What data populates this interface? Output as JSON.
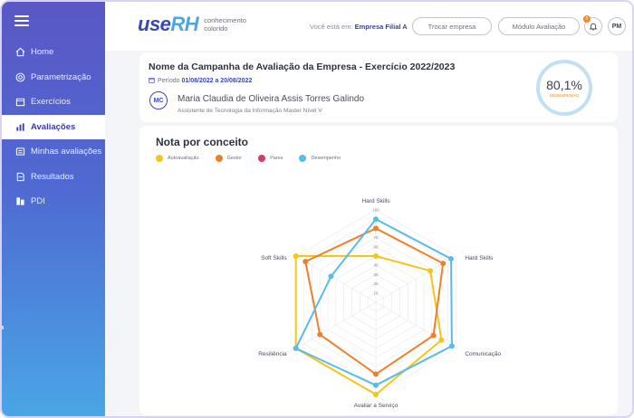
{
  "brand": {
    "logo_use": "use",
    "logo_rh": "RH",
    "tagline": "conhecimento colorido"
  },
  "sidebar": {
    "items": [
      {
        "label": "Home",
        "icon": "home-icon"
      },
      {
        "label": "Parametrização",
        "icon": "target-icon"
      },
      {
        "label": "Exercícios",
        "icon": "calendar-icon"
      },
      {
        "label": "Avaliações",
        "icon": "chart-bars-icon",
        "active": true
      },
      {
        "label": "Minhas avaliações",
        "icon": "people-icon"
      },
      {
        "label": "Resultados",
        "icon": "document-icon"
      },
      {
        "label": "PDI",
        "icon": "grid-chart-icon"
      }
    ]
  },
  "header": {
    "company_prefix": "Você está em:",
    "company_name": "Empresa Filial A",
    "switch_company": "Trocar empresa",
    "module": "Módulo Avaliação",
    "notifications_count": "0",
    "user_initials": "PM"
  },
  "campaign": {
    "title": "Nome da Campanha de Avaliação da Empresa - Exercício 2022/2023",
    "period_label": "Período",
    "period_value": "01/08/2022 a 20/08/2022",
    "person_initials": "MC",
    "person_name": "Maria Claudia de Oliveira Assis Torres Galindo",
    "person_role": "Assistente de Tecnologia da Informação Master Nível V",
    "score": "80,1%",
    "score_label": "DESEMPENHO"
  },
  "chart_section": {
    "title": "Nota por conceito"
  },
  "colors": {
    "autoavaliacao": "#f5c518",
    "gestor": "#f07f2a",
    "pares": "#d63a6a",
    "desempenho": "#5bbbe8"
  },
  "chart_data": {
    "type": "radar",
    "axes": [
      "Hard Skills",
      "Hard Skills",
      "Comunicação",
      "Avaliar a Serviço",
      "Resiliência",
      "Soft Skills"
    ],
    "ticks": [
      "100",
      "90",
      "80",
      "70",
      "60",
      "50",
      "40",
      "30",
      "20",
      "10"
    ],
    "rmax": 100,
    "series": [
      {
        "name": "Autoavaliação",
        "color": "#f5c518",
        "values": [
          50,
          68,
          82,
          100,
          100,
          100
        ]
      },
      {
        "name": "Gestor",
        "color": "#f07f2a",
        "values": [
          80,
          84,
          72,
          78,
          70,
          88
        ]
      },
      {
        "name": "Pares",
        "color": "#d63a6a",
        "values": []
      },
      {
        "name": "Desempenho",
        "color": "#5bbbe8",
        "values": [
          90,
          94,
          95,
          90,
          100,
          56
        ]
      }
    ]
  }
}
